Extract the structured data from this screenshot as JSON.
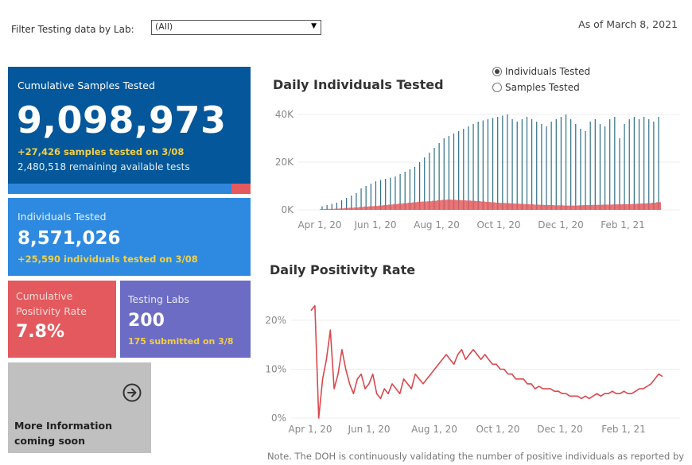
{
  "filter": {
    "label": "Filter Testing data by Lab:",
    "value": "(All)"
  },
  "as_of": "As of March 8, 2021",
  "cards": {
    "samples": {
      "title": "Cumulative Samples Tested",
      "value": "9,098,973",
      "sub1": "+27,426 samples tested on 3/08",
      "sub2": "2,480,518 remaining available tests",
      "progress_used_fraction": 0.92
    },
    "individuals": {
      "title": "Individuals Tested",
      "value": "8,571,026",
      "sub1": "+25,590  individuals  tested on 3/08"
    },
    "positivity": {
      "title": "Cumulative Positivity Rate",
      "value": "7.8%"
    },
    "labs": {
      "title": "Testing Labs",
      "value": "200",
      "sub1": "175 submitted on 3/8"
    },
    "more": {
      "line1": "More Information",
      "line2": "coming soon"
    }
  },
  "toggle": {
    "option1": "Individuals Tested",
    "option2": "Samples Tested",
    "selected": "Individuals Tested"
  },
  "colors": {
    "tested": "#2f6f86",
    "positive": "#e3595d",
    "line": "#d9484d"
  },
  "note": "Note. The DOH is continuously validating the number of positive individuals as reported by",
  "chart_data": [
    {
      "type": "bar",
      "title": "Daily Individuals Tested",
      "y_ticks": [
        "0K",
        "20K",
        "40K"
      ],
      "ylim": [
        0,
        42000
      ],
      "x_tick_labels": [
        "Apr 1, 20",
        "Jun 1, 20",
        "Aug 1, 20",
        "Oct 1, 20",
        "Dec 1, 20",
        "Feb 1, 21"
      ],
      "grid": true,
      "series": [
        {
          "name": "Individuals Tested",
          "values": [
            1500,
            2000,
            2500,
            3000,
            4000,
            5000,
            6000,
            7000,
            9000,
            10000,
            11000,
            12000,
            12500,
            13000,
            13500,
            14000,
            15000,
            16000,
            17000,
            18000,
            20000,
            22000,
            24000,
            26000,
            28000,
            30000,
            31000,
            32000,
            33000,
            34000,
            35000,
            36000,
            37000,
            37500,
            38000,
            38500,
            39000,
            39500,
            40000,
            38000,
            37000,
            38000,
            39000,
            38000,
            37000,
            36000,
            35000,
            37000,
            38000,
            39000,
            40000,
            38000,
            36000,
            34000,
            33000,
            37000,
            38000,
            36000,
            35000,
            38000,
            39000,
            30000,
            36000,
            38000,
            39000,
            38000,
            39000,
            38000,
            37000,
            39000
          ]
        },
        {
          "name": "Positive",
          "values": [
            300,
            400,
            400,
            500,
            600,
            800,
            900,
            1000,
            1200,
            1400,
            1500,
            1600,
            1800,
            2000,
            2200,
            2400,
            2600,
            2800,
            3000,
            3200,
            3400,
            3500,
            3600,
            3800,
            4000,
            4200,
            4300,
            4200,
            4100,
            4000,
            3900,
            3800,
            3700,
            3500,
            3300,
            3200,
            3000,
            2900,
            2800,
            2700,
            2600,
            2500,
            2400,
            2300,
            2200,
            2100,
            2000,
            2000,
            1900,
            1900,
            1800,
            1800,
            1800,
            1900,
            2000,
            2000,
            2100,
            2100,
            2200,
            2200,
            2300,
            2300,
            2400,
            2400,
            2500,
            2600,
            2700,
            2800,
            3000,
            3200
          ]
        }
      ]
    },
    {
      "type": "line",
      "title": "Daily Positivity Rate",
      "y_ticks": [
        "0%",
        "10%",
        "20%"
      ],
      "ylim": [
        0,
        26
      ],
      "x_tick_labels": [
        "Apr 1, 20",
        "Jun 1, 20",
        "Aug 1, 20",
        "Oct 1, 20",
        "Dec 1, 20",
        "Feb 1, 21"
      ],
      "grid": true,
      "series": [
        {
          "name": "Positivity Rate",
          "values": [
            22,
            23,
            0,
            8,
            12,
            18,
            6,
            9,
            14,
            10,
            7,
            5,
            8,
            9,
            6,
            7,
            9,
            5,
            4,
            6,
            5,
            7,
            6,
            5,
            8,
            7,
            6,
            9,
            8,
            7,
            8,
            9,
            10,
            11,
            12,
            13,
            12,
            11,
            13,
            14,
            12,
            13,
            14,
            13,
            12,
            13,
            12,
            11,
            11,
            10,
            10,
            9,
            9,
            8,
            8,
            8,
            7,
            7,
            6,
            6.5,
            6,
            6,
            6,
            5.5,
            5.5,
            5,
            5,
            4.5,
            4.5,
            4.5,
            4,
            4.5,
            4,
            4.5,
            5,
            4.5,
            5,
            5,
            5.5,
            5,
            5,
            5.5,
            5,
            5,
            5.5,
            6,
            6,
            6.5,
            7,
            8,
            9,
            8.5
          ]
        }
      ]
    }
  ]
}
